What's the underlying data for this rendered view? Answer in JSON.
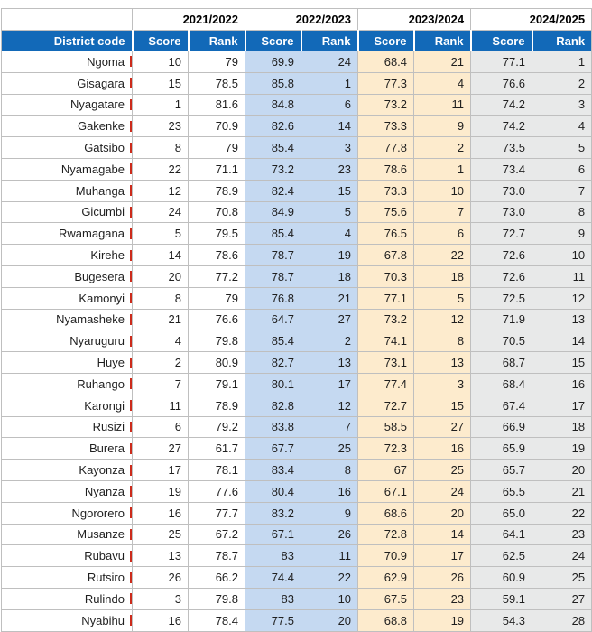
{
  "colors": {
    "header_blue": "#1269b8",
    "header_text": "#ffffff",
    "year_blue_bg": "#dce6f3",
    "year_cream_bg": "#fcf0dd",
    "year_gray_bg": "#efefef",
    "cell_blue_bg": "#c5d9f1",
    "cell_cream_bg": "#fdebcd",
    "cell_gray_bg": "#e8e9e9",
    "grid_line": "#bfbfbf",
    "district_edge_tick": "#cc2a1a"
  },
  "table": {
    "corner_label": "",
    "district_header": "District code",
    "sub_headers": [
      "Score",
      "Rank"
    ],
    "year_groups": [
      {
        "label": "2021/2022",
        "theme": "white"
      },
      {
        "label": "2022/2023",
        "theme": "blue"
      },
      {
        "label": "2023/2024",
        "theme": "cream"
      },
      {
        "label": "2024/2025",
        "theme": "gray"
      }
    ],
    "column_order": [
      "2021/2022 Score",
      "2021/2022 Rank",
      "2022/2023 Score",
      "2022/2023 Rank",
      "2023/2024 Score",
      "2023/2024 Rank",
      "2024/2025 Score",
      "2024/2025 Rank"
    ],
    "rows": [
      {
        "district": "Ngoma",
        "cells": [
          "10",
          "79",
          "69.9",
          "24",
          "68.4",
          "21",
          "77.1",
          "1"
        ]
      },
      {
        "district": "Gisagara",
        "cells": [
          "15",
          "78.5",
          "85.8",
          "1",
          "77.3",
          "4",
          "76.6",
          "2"
        ]
      },
      {
        "district": "Nyagatare",
        "cells": [
          "1",
          "81.6",
          "84.8",
          "6",
          "73.2",
          "11",
          "74.2",
          "3"
        ]
      },
      {
        "district": "Gakenke",
        "cells": [
          "23",
          "70.9",
          "82.6",
          "14",
          "73.3",
          "9",
          "74.2",
          "4"
        ]
      },
      {
        "district": "Gatsibo",
        "cells": [
          "8",
          "79",
          "85.4",
          "3",
          "77.8",
          "2",
          "73.5",
          "5"
        ]
      },
      {
        "district": "Nyamagabe",
        "cells": [
          "22",
          "71.1",
          "73.2",
          "23",
          "78.6",
          "1",
          "73.4",
          "6"
        ]
      },
      {
        "district": "Muhanga",
        "cells": [
          "12",
          "78.9",
          "82.4",
          "15",
          "73.3",
          "10",
          "73.0",
          "7"
        ]
      },
      {
        "district": "Gicumbi",
        "cells": [
          "24",
          "70.8",
          "84.9",
          "5",
          "75.6",
          "7",
          "73.0",
          "8"
        ]
      },
      {
        "district": "Rwamagana",
        "cells": [
          "5",
          "79.5",
          "85.4",
          "4",
          "76.5",
          "6",
          "72.7",
          "9"
        ]
      },
      {
        "district": "Kirehe",
        "cells": [
          "14",
          "78.6",
          "78.7",
          "19",
          "67.8",
          "22",
          "72.6",
          "10"
        ]
      },
      {
        "district": "Bugesera",
        "cells": [
          "20",
          "77.2",
          "78.7",
          "18",
          "70.3",
          "18",
          "72.6",
          "11"
        ]
      },
      {
        "district": "Kamonyi",
        "cells": [
          "8",
          "79",
          "76.8",
          "21",
          "77.1",
          "5",
          "72.5",
          "12"
        ]
      },
      {
        "district": "Nyamasheke",
        "cells": [
          "21",
          "76.6",
          "64.7",
          "27",
          "73.2",
          "12",
          "71.9",
          "13"
        ]
      },
      {
        "district": "Nyaruguru",
        "cells": [
          "4",
          "79.8",
          "85.4",
          "2",
          "74.1",
          "8",
          "70.5",
          "14"
        ]
      },
      {
        "district": "Huye",
        "cells": [
          "2",
          "80.9",
          "82.7",
          "13",
          "73.1",
          "13",
          "68.7",
          "15"
        ]
      },
      {
        "district": "Ruhango",
        "cells": [
          "7",
          "79.1",
          "80.1",
          "17",
          "77.4",
          "3",
          "68.4",
          "16"
        ]
      },
      {
        "district": "Karongi",
        "cells": [
          "11",
          "78.9",
          "82.8",
          "12",
          "72.7",
          "15",
          "67.4",
          "17"
        ]
      },
      {
        "district": "Rusizi",
        "cells": [
          "6",
          "79.2",
          "83.8",
          "7",
          "58.5",
          "27",
          "66.9",
          "18"
        ]
      },
      {
        "district": "Burera",
        "cells": [
          "27",
          "61.7",
          "67.7",
          "25",
          "72.3",
          "16",
          "65.9",
          "19"
        ]
      },
      {
        "district": "Kayonza",
        "cells": [
          "17",
          "78.1",
          "83.4",
          "8",
          "67",
          "25",
          "65.7",
          "20"
        ]
      },
      {
        "district": "Nyanza",
        "cells": [
          "19",
          "77.6",
          "80.4",
          "16",
          "67.1",
          "24",
          "65.5",
          "21"
        ]
      },
      {
        "district": "Ngororero",
        "cells": [
          "16",
          "77.7",
          "83.2",
          "9",
          "68.6",
          "20",
          "65.0",
          "22"
        ]
      },
      {
        "district": "Musanze",
        "cells": [
          "25",
          "67.2",
          "67.1",
          "26",
          "72.8",
          "14",
          "64.1",
          "23"
        ]
      },
      {
        "district": "Rubavu",
        "cells": [
          "13",
          "78.7",
          "83",
          "11",
          "70.9",
          "17",
          "62.5",
          "24"
        ]
      },
      {
        "district": "Rutsiro",
        "cells": [
          "26",
          "66.2",
          "74.4",
          "22",
          "62.9",
          "26",
          "60.9",
          "25"
        ]
      },
      {
        "district": "Rulindo",
        "cells": [
          "3",
          "79.8",
          "83",
          "10",
          "67.5",
          "23",
          "59.1",
          "27"
        ]
      },
      {
        "district": "Nyabihu",
        "cells": [
          "16",
          "78.4",
          "77.5",
          "20",
          "68.8",
          "19",
          "54.3",
          "28"
        ]
      }
    ]
  }
}
